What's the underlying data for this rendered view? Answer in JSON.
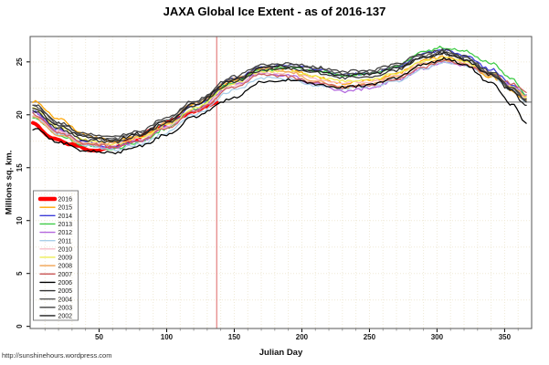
{
  "chart_data": {
    "type": "line",
    "title": "JAXA Global Ice Extent - as of 2016-137",
    "xlabel": "Julian Day",
    "ylabel": "Millions sq. km.",
    "footer": "http://sunshinehours.wordpress.com",
    "xlim": [
      -1,
      370
    ],
    "ylim": [
      -0.2,
      27.4
    ],
    "x_ticks": [
      50,
      100,
      150,
      200,
      250,
      300,
      350
    ],
    "y_ticks": [
      0,
      5,
      10,
      15,
      20,
      25
    ],
    "x_minor_tick_step": 10,
    "grid": {
      "x_step": 10,
      "y_step": 2.5,
      "color": "#EFE9D6"
    },
    "legend": {
      "position": "bottom-left"
    },
    "reference_lines": {
      "horizontal": {
        "value": 21.2,
        "color": "#808080",
        "meaning": "2016 latest extent"
      },
      "vertical": {
        "day": 137,
        "color": "#DD6666",
        "meaning": "current julian day"
      }
    },
    "sample_days": [
      1,
      20,
      40,
      60,
      80,
      100,
      120,
      150,
      170,
      190,
      210,
      230,
      250,
      270,
      290,
      305,
      320,
      340,
      355,
      366
    ],
    "series": [
      {
        "name": "2016",
        "color": "#FF0000",
        "width": 4,
        "days": [
          1,
          15,
          30,
          45,
          60,
          75,
          90,
          105,
          120,
          130,
          137
        ],
        "values": [
          19.2,
          17.8,
          17.2,
          16.6,
          16.9,
          17.6,
          18.6,
          19.5,
          20.3,
          20.8,
          21.2
        ]
      },
      {
        "name": "2015",
        "color": "#FFA500",
        "width": 1.25,
        "values": [
          21.3,
          19.6,
          18.1,
          17.5,
          17.9,
          19.1,
          20.9,
          23.2,
          24.4,
          24.3,
          23.6,
          23.0,
          23.2,
          23.9,
          25.1,
          25.5,
          25.0,
          23.6,
          22.3,
          21.4
        ]
      },
      {
        "name": "2014",
        "color": "#3B3BD8",
        "width": 1.25,
        "values": [
          20.3,
          18.6,
          17.4,
          17.0,
          17.6,
          18.9,
          20.8,
          23.4,
          24.5,
          24.7,
          24.3,
          23.8,
          23.9,
          24.5,
          25.8,
          26.2,
          25.6,
          24.3,
          22.9,
          21.8
        ]
      },
      {
        "name": "2013",
        "color": "#3FCC46",
        "width": 1.25,
        "values": [
          19.7,
          18.1,
          17.1,
          16.8,
          17.4,
          18.7,
          20.5,
          23.1,
          24.2,
          24.5,
          24.2,
          23.7,
          23.8,
          24.6,
          26.0,
          26.4,
          26.0,
          24.9,
          23.5,
          21.9
        ]
      },
      {
        "name": "2012",
        "color": "#B266DD",
        "width": 1.25,
        "values": [
          20.2,
          18.5,
          17.2,
          16.9,
          17.5,
          18.8,
          20.4,
          22.8,
          23.9,
          23.7,
          22.9,
          22.2,
          22.5,
          23.3,
          24.4,
          24.9,
          24.6,
          23.8,
          22.7,
          21.9
        ]
      },
      {
        "name": "2011",
        "color": "#A8CEE8",
        "width": 1.25,
        "values": [
          19.9,
          18.2,
          17.1,
          16.7,
          17.2,
          18.3,
          20.0,
          22.3,
          23.5,
          23.4,
          22.8,
          22.5,
          22.7,
          23.2,
          24.3,
          25.0,
          24.7,
          23.7,
          22.4,
          21.3
        ]
      },
      {
        "name": "2010",
        "color": "#F7BCC8",
        "width": 1.25,
        "values": [
          20.0,
          18.4,
          17.4,
          17.1,
          17.7,
          18.8,
          20.4,
          22.7,
          23.9,
          24.0,
          23.4,
          23.0,
          23.1,
          23.7,
          24.9,
          25.3,
          24.9,
          23.8,
          22.6,
          21.6
        ]
      },
      {
        "name": "2009",
        "color": "#EDED55",
        "width": 1.25,
        "values": [
          20.6,
          18.8,
          17.6,
          17.2,
          17.8,
          19.0,
          20.6,
          23.0,
          24.1,
          24.1,
          23.6,
          23.2,
          23.3,
          23.9,
          25.0,
          25.4,
          25.0,
          23.9,
          22.7,
          21.7
        ]
      },
      {
        "name": "2008",
        "color": "#F2A95F",
        "width": 1.25,
        "values": [
          19.8,
          18.0,
          17.2,
          17.3,
          18.0,
          19.3,
          21.1,
          23.4,
          24.4,
          24.1,
          23.2,
          22.6,
          22.9,
          23.6,
          24.8,
          25.2,
          24.8,
          23.7,
          22.6,
          21.8
        ]
      },
      {
        "name": "2007",
        "color": "#CC5F5F",
        "width": 1.25,
        "values": [
          20.1,
          18.3,
          17.3,
          17.0,
          17.6,
          18.7,
          20.3,
          22.6,
          23.8,
          23.6,
          23.0,
          22.6,
          22.8,
          23.4,
          24.5,
          25.1,
          24.7,
          23.9,
          23.0,
          22.1
        ]
      },
      {
        "name": "2006",
        "color": "#000000",
        "width": 1.25,
        "values": [
          18.7,
          17.4,
          16.6,
          16.4,
          17.0,
          18.1,
          19.8,
          21.6,
          23.1,
          23.3,
          22.9,
          22.6,
          22.8,
          23.5,
          24.7,
          25.3,
          24.8,
          23.0,
          21.0,
          19.2
        ]
      },
      {
        "name": "2005",
        "color": "#303030",
        "width": 1.25,
        "values": [
          20.4,
          18.7,
          17.6,
          17.4,
          18.0,
          19.2,
          20.9,
          23.1,
          24.2,
          24.4,
          24.0,
          23.5,
          23.6,
          24.2,
          25.4,
          25.8,
          25.3,
          23.9,
          22.4,
          21.2
        ]
      },
      {
        "name": "2004",
        "color": "#575757",
        "width": 1.25,
        "values": [
          20.9,
          19.2,
          18.0,
          17.7,
          18.3,
          19.5,
          21.1,
          23.4,
          24.5,
          24.7,
          24.4,
          23.9,
          24.0,
          24.6,
          25.6,
          26.0,
          25.4,
          24.0,
          22.5,
          21.3
        ]
      },
      {
        "name": "2003",
        "color": "#404040",
        "width": 1.25,
        "values": [
          21.0,
          19.3,
          18.2,
          17.9,
          18.5,
          19.7,
          21.3,
          23.6,
          24.7,
          24.9,
          24.5,
          24.1,
          24.2,
          24.8,
          25.8,
          26.1,
          25.5,
          24.1,
          22.6,
          21.5
        ]
      },
      {
        "name": "2002",
        "color": "#1E1E1E",
        "width": 1.25,
        "values": [
          20.7,
          19.0,
          17.9,
          17.6,
          18.2,
          19.4,
          21.0,
          23.3,
          24.4,
          24.6,
          24.2,
          23.7,
          23.8,
          24.4,
          25.5,
          25.8,
          25.2,
          23.8,
          22.3,
          20.9
        ]
      }
    ]
  }
}
